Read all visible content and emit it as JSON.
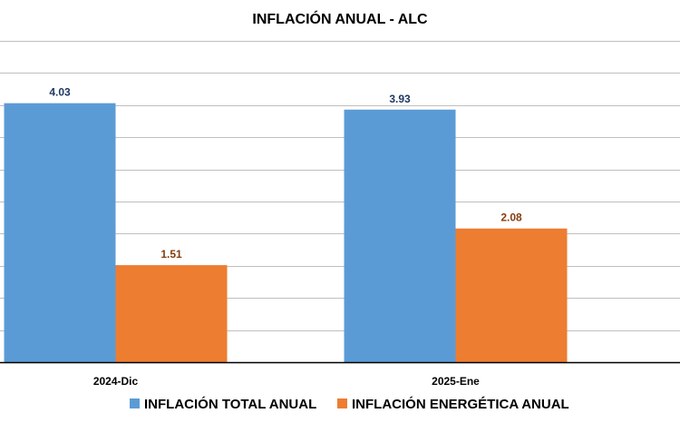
{
  "chart_data": {
    "type": "bar",
    "title": "INFLACIÓN ANUAL - ALC",
    "categories": [
      "2024-Dic",
      "2025-Ene"
    ],
    "series": [
      {
        "name": "INFLACIÓN TOTAL ANUAL",
        "values": [
          4.03,
          3.93
        ],
        "color": "#5B9BD5",
        "label_color": "#1F3864"
      },
      {
        "name": "INFLACIÓN ENERGÉTICA ANUAL",
        "values": [
          1.51,
          2.08
        ],
        "color": "#ED7D31",
        "label_color": "#843C0C"
      }
    ],
    "ylim": [
      0,
      5
    ],
    "grid": true,
    "legend": "bottom"
  }
}
